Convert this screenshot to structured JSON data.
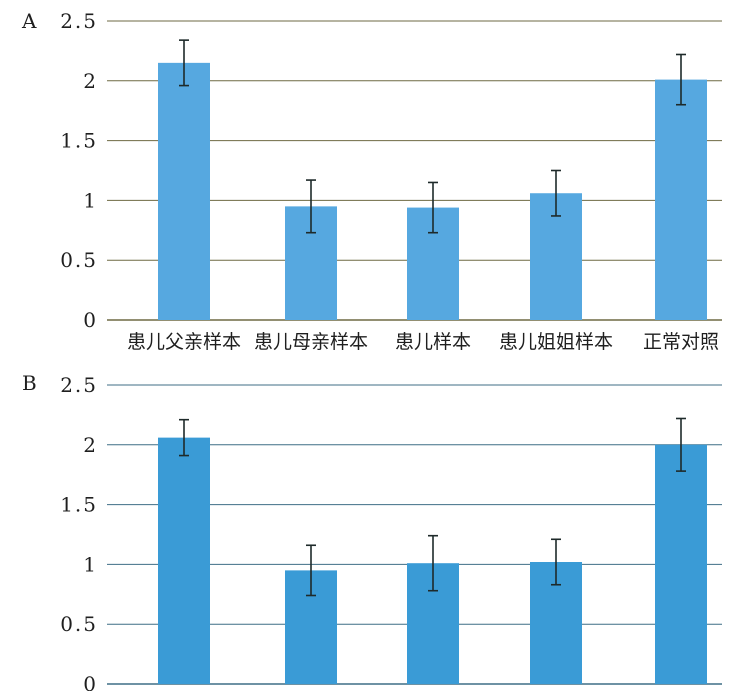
{
  "chart_data": [
    {
      "type": "bar",
      "panel_label": "A",
      "categories": [
        "患儿父亲样本",
        "患儿母亲样本",
        "患儿样本",
        "患儿姐姐样本",
        "正常对照"
      ],
      "values": [
        2.15,
        0.95,
        0.94,
        1.06,
        2.01
      ],
      "error": [
        0.19,
        0.22,
        0.21,
        0.19,
        0.21
      ],
      "ylim": [
        0,
        2.5
      ],
      "yticks": [
        "0",
        "0.5",
        "1",
        "1.5",
        "2",
        "2.5"
      ],
      "ytick_values": [
        0,
        0.5,
        1,
        1.5,
        2,
        2.5
      ],
      "grid": true,
      "bar_color": "#56a8e0",
      "grid_color": "#6e6a43"
    },
    {
      "type": "bar",
      "panel_label": "B",
      "categories": [
        "患儿父亲样本",
        "患儿母亲样本",
        "患儿样本",
        "患儿姐姐样本",
        "正常对照"
      ],
      "values": [
        2.06,
        0.95,
        1.01,
        1.02,
        2.0
      ],
      "error": [
        0.15,
        0.21,
        0.23,
        0.19,
        0.22
      ],
      "ylim": [
        0,
        2.5
      ],
      "yticks": [
        "0",
        "0.5",
        "1",
        "1.5",
        "2",
        "2.5"
      ],
      "ytick_values": [
        0,
        0.5,
        1,
        1.5,
        2,
        2.5
      ],
      "grid": true,
      "bar_color": "#3a9bd6",
      "grid_color": "#3f6e86"
    }
  ]
}
